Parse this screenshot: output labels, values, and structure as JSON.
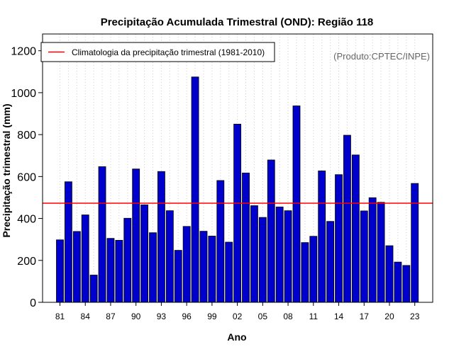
{
  "colors": {
    "bar_fill": "#0000CD",
    "bar_stroke": "#000000",
    "climatology_line": "#FF0000",
    "grid": "#CCCCCC",
    "credit_text": "#666666"
  },
  "chart_data": {
    "type": "bar",
    "title": "Precipitação Acumulada Trimestral (OND): Região 118",
    "xlabel": "Ano",
    "ylabel": "Precipitação trimestral (mm)",
    "credit": "(Produto:CPTEC/INPE)",
    "legend": {
      "label": "Climatologia da precipitação trimestral (1981-2010)",
      "placement": "top-left"
    },
    "climatology": 473,
    "ylim": [
      0,
      1280
    ],
    "yticks": [
      0,
      200,
      400,
      600,
      800,
      1000,
      1200
    ],
    "xtick_labels": [
      "81",
      "84",
      "87",
      "90",
      "93",
      "96",
      "99",
      "02",
      "05",
      "08",
      "11",
      "14",
      "17",
      "20",
      "23"
    ],
    "categories": [
      "1981",
      "1982",
      "1983",
      "1984",
      "1985",
      "1986",
      "1987",
      "1988",
      "1989",
      "1990",
      "1991",
      "1992",
      "1993",
      "1994",
      "1995",
      "1996",
      "1997",
      "1998",
      "1999",
      "2000",
      "2001",
      "2002",
      "2003",
      "2004",
      "2005",
      "2006",
      "2007",
      "2008",
      "2009",
      "2010",
      "2011",
      "2012",
      "2013",
      "2014",
      "2015",
      "2016",
      "2017",
      "2018",
      "2019",
      "2020",
      "2021",
      "2022",
      "2023"
    ],
    "values": [
      298,
      575,
      338,
      417,
      130,
      647,
      305,
      296,
      401,
      636,
      465,
      332,
      624,
      437,
      248,
      362,
      1075,
      339,
      316,
      581,
      287,
      850,
      617,
      461,
      405,
      679,
      455,
      437,
      937,
      285,
      315,
      627,
      386,
      609,
      797,
      703,
      436,
      499,
      477,
      270,
      192,
      176,
      567
    ]
  }
}
